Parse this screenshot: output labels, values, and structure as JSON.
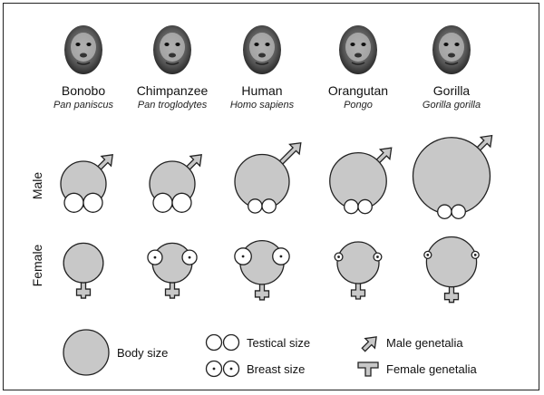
{
  "colors": {
    "body_fill": "#c8c8c8",
    "stroke": "#222222",
    "white": "#ffffff",
    "background": "#ffffff"
  },
  "rows": {
    "male_label": "Male",
    "female_label": "Female"
  },
  "species": [
    {
      "name": "Bonobo",
      "scientific": "Pan paniscus",
      "portrait_icon": "bonobo-face",
      "male": {
        "body_size": 1.0,
        "testis_size": 1.0,
        "genitalia_size": 0.8
      },
      "female": {
        "body_size": 0.95,
        "breast_size": 0.0,
        "genitalia_size": 1.0
      }
    },
    {
      "name": "Chimpanzee",
      "scientific": "Pan troglodytes",
      "portrait_icon": "chimpanzee-face",
      "male": {
        "body_size": 1.0,
        "testis_size": 1.0,
        "genitalia_size": 0.8
      },
      "female": {
        "body_size": 0.95,
        "breast_size": 1.0,
        "genitalia_size": 1.0
      }
    },
    {
      "name": "Human",
      "scientific": "Homo sapiens",
      "portrait_icon": "human-face",
      "male": {
        "body_size": 1.2,
        "testis_size": 0.7,
        "genitalia_size": 1.3
      },
      "female": {
        "body_size": 1.05,
        "breast_size": 1.15,
        "genitalia_size": 1.0
      }
    },
    {
      "name": "Orangutan",
      "scientific": "Pongo",
      "portrait_icon": "orangutan-face",
      "male": {
        "body_size": 1.25,
        "testis_size": 0.7,
        "genitalia_size": 0.8
      },
      "female": {
        "body_size": 1.0,
        "breast_size": 0.55,
        "genitalia_size": 1.0
      }
    },
    {
      "name": "Gorilla",
      "scientific": "Gorilla gorilla",
      "portrait_icon": "gorilla-face",
      "male": {
        "body_size": 1.7,
        "testis_size": 0.7,
        "genitalia_size": 0.8
      },
      "female": {
        "body_size": 1.2,
        "breast_size": 0.5,
        "genitalia_size": 1.0
      }
    }
  ],
  "legend": {
    "body_size": "Body size",
    "testical_size": "Testical size",
    "breast_size": "Breast size",
    "male_genitalia": "Male genetalia",
    "female_genitalia": "Female genetalia"
  }
}
